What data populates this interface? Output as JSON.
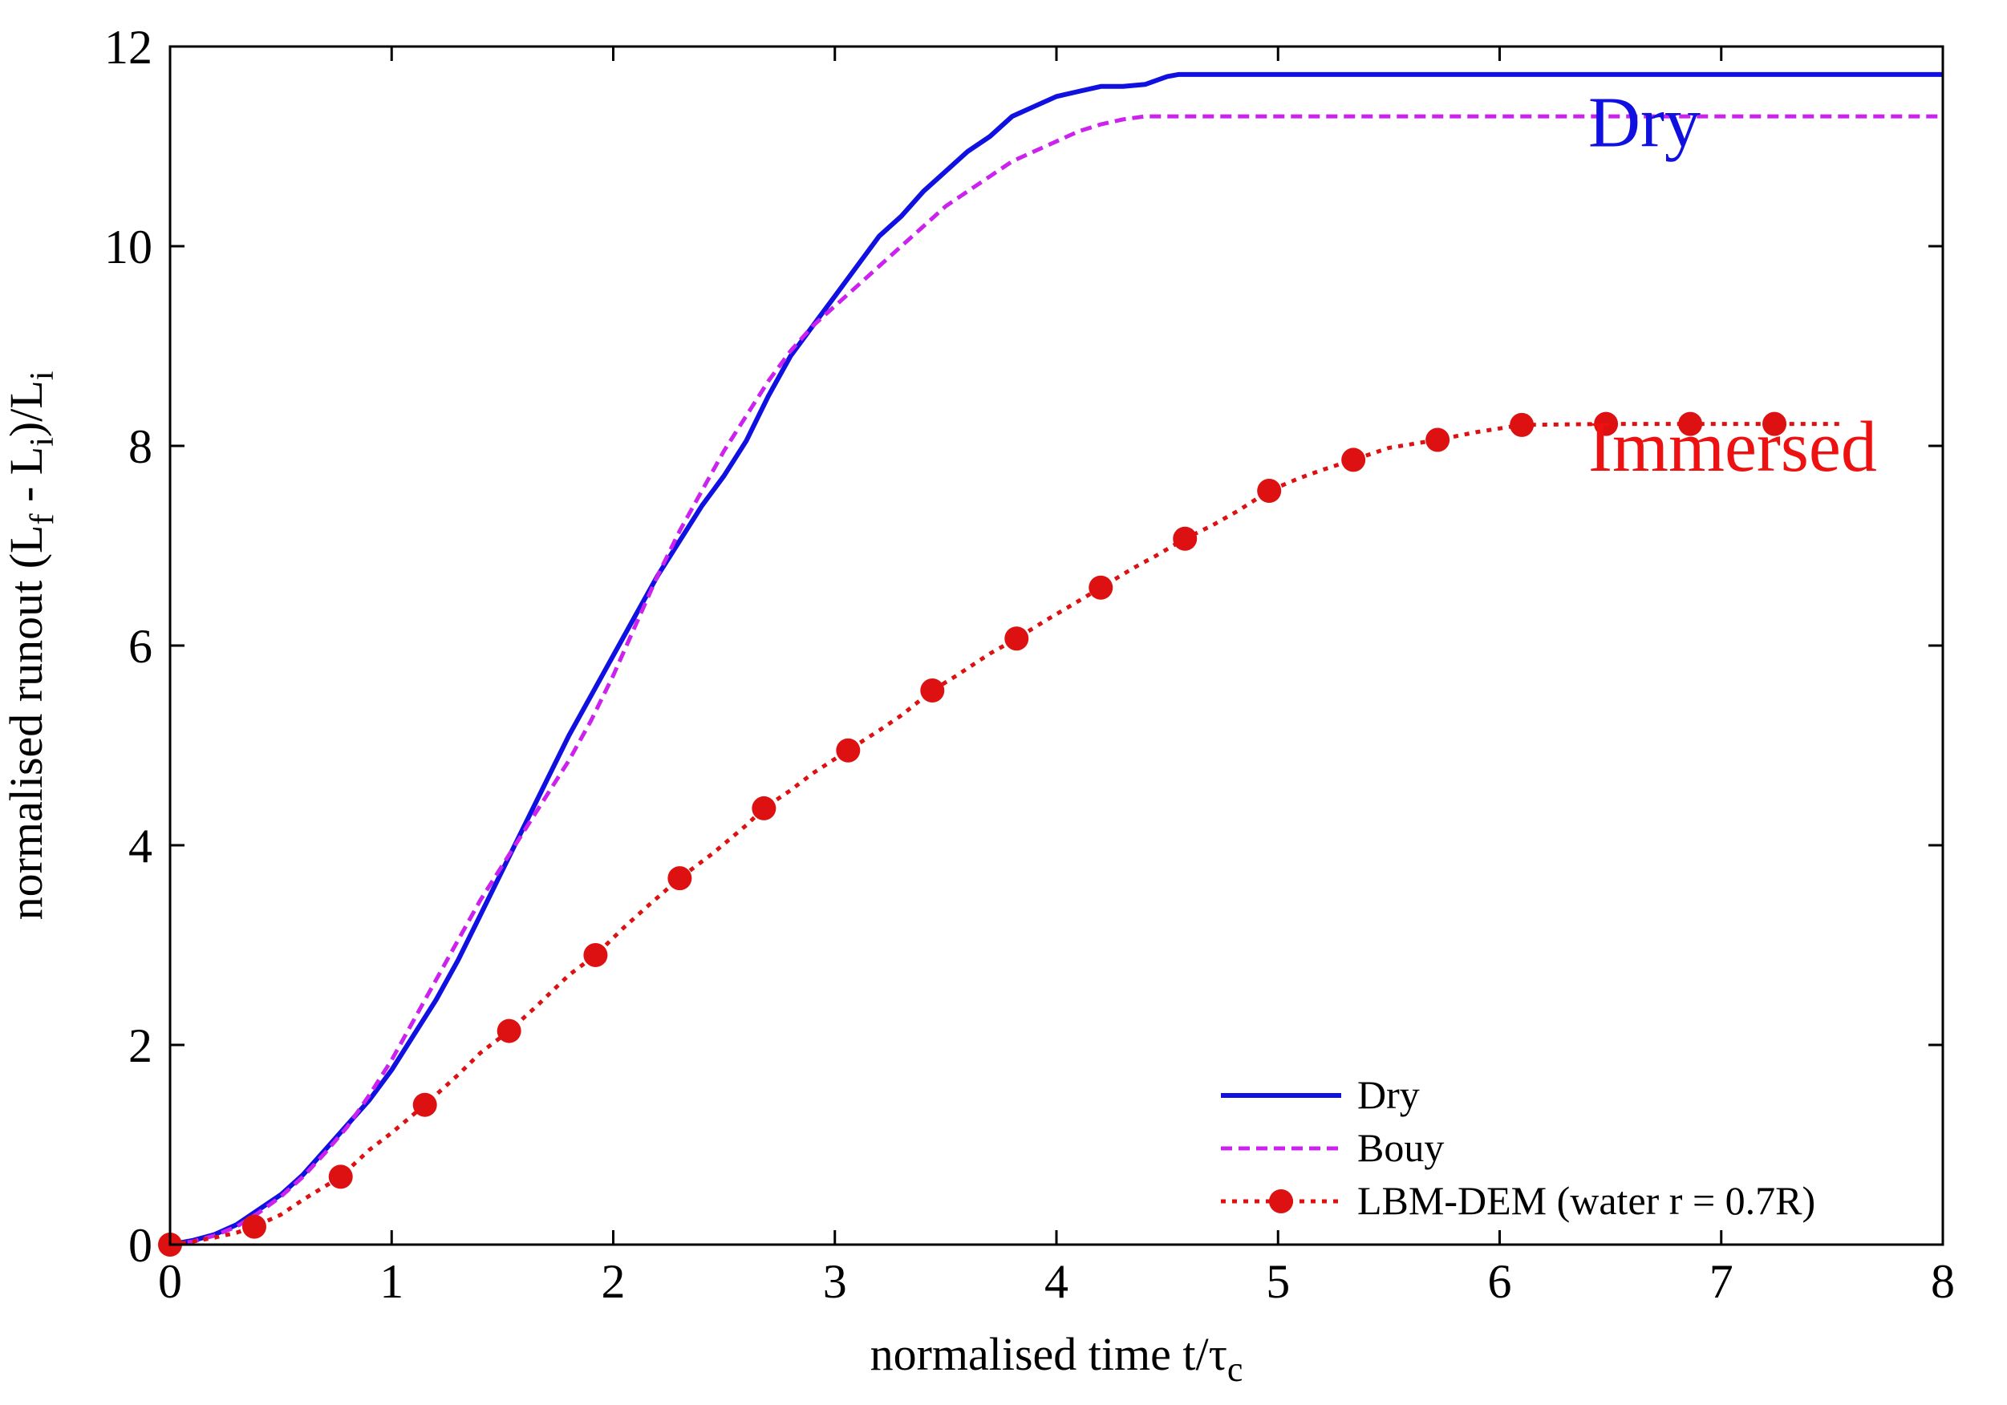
{
  "chart_data": {
    "type": "line",
    "xlabel": "normalised time t/τ",
    "xlabel_sub": "c",
    "ylabel_parts": [
      "normalised runout (L",
      "f",
      " - L",
      "i",
      ")/L",
      "i"
    ],
    "xlim": [
      0,
      8
    ],
    "ylim": [
      0,
      12
    ],
    "xticks": [
      0,
      1,
      2,
      3,
      4,
      5,
      6,
      7,
      8
    ],
    "yticks": [
      0,
      2,
      4,
      6,
      8,
      10,
      12
    ],
    "grid": false,
    "legend_position": "bottom-right",
    "annotations": [
      {
        "text": "Dry",
        "x": 6.4,
        "y": 11.0,
        "color": "#1010e0"
      },
      {
        "text": "Immersed",
        "x": 6.4,
        "y": 7.75,
        "color": "#ee1111"
      }
    ],
    "series": [
      {
        "name": "Dry",
        "color": "#1010e0",
        "style": "solid",
        "x": [
          0,
          0.1,
          0.2,
          0.3,
          0.4,
          0.5,
          0.6,
          0.7,
          0.8,
          0.9,
          1.0,
          1.1,
          1.2,
          1.3,
          1.4,
          1.5,
          1.6,
          1.7,
          1.8,
          1.9,
          2.0,
          2.1,
          2.2,
          2.3,
          2.4,
          2.5,
          2.6,
          2.7,
          2.8,
          2.9,
          3.0,
          3.1,
          3.2,
          3.3,
          3.4,
          3.5,
          3.6,
          3.7,
          3.8,
          3.9,
          4.0,
          4.1,
          4.2,
          4.3,
          4.4,
          4.5,
          4.55,
          4.6,
          4.65,
          5.0,
          6.0,
          7.0,
          8.0
        ],
        "y": [
          0,
          0.04,
          0.1,
          0.2,
          0.35,
          0.5,
          0.7,
          0.95,
          1.2,
          1.45,
          1.75,
          2.1,
          2.45,
          2.85,
          3.3,
          3.75,
          4.2,
          4.65,
          5.1,
          5.5,
          5.9,
          6.3,
          6.7,
          7.05,
          7.4,
          7.7,
          8.05,
          8.5,
          8.9,
          9.2,
          9.5,
          9.8,
          10.1,
          10.3,
          10.55,
          10.75,
          10.95,
          11.1,
          11.3,
          11.4,
          11.5,
          11.55,
          11.6,
          11.6,
          11.62,
          11.7,
          11.72,
          11.72,
          11.72,
          11.72,
          11.72,
          11.72,
          11.72
        ]
      },
      {
        "name": "Bouy",
        "color": "#cc22ee",
        "style": "dashed",
        "x": [
          0,
          0.1,
          0.2,
          0.3,
          0.4,
          0.5,
          0.6,
          0.7,
          0.8,
          0.9,
          1.0,
          1.1,
          1.2,
          1.3,
          1.4,
          1.5,
          1.6,
          1.7,
          1.8,
          1.9,
          2.0,
          2.1,
          2.2,
          2.3,
          2.4,
          2.5,
          2.6,
          2.7,
          2.8,
          2.9,
          3.0,
          3.1,
          3.2,
          3.3,
          3.4,
          3.5,
          3.6,
          3.7,
          3.8,
          3.9,
          4.0,
          4.1,
          4.2,
          4.3,
          4.4,
          4.5,
          5.0,
          6.0,
          7.0,
          8.0
        ],
        "y": [
          0,
          0.03,
          0.09,
          0.18,
          0.32,
          0.48,
          0.68,
          0.92,
          1.18,
          1.5,
          1.85,
          2.25,
          2.65,
          3.05,
          3.45,
          3.8,
          4.15,
          4.5,
          4.85,
          5.25,
          5.7,
          6.2,
          6.7,
          7.15,
          7.55,
          7.95,
          8.3,
          8.65,
          8.95,
          9.2,
          9.4,
          9.6,
          9.8,
          10.0,
          10.2,
          10.4,
          10.55,
          10.7,
          10.85,
          10.95,
          11.05,
          11.15,
          11.22,
          11.27,
          11.3,
          11.3,
          11.3,
          11.3,
          11.3,
          11.3
        ]
      },
      {
        "name": "LBM-DEM (water r = 0.7R)",
        "color": "#dd1111",
        "style": "dotted-markers",
        "line_x": [
          0,
          0.1,
          0.2,
          0.3,
          0.38,
          0.5,
          0.6,
          0.77,
          0.9,
          1.0,
          1.15,
          1.3,
          1.4,
          1.53,
          1.65,
          1.8,
          1.92,
          2.05,
          2.15,
          2.3,
          2.45,
          2.6,
          2.68,
          2.8,
          2.9,
          3.06,
          3.2,
          3.3,
          3.44,
          3.55,
          3.7,
          3.82,
          3.95,
          4.05,
          4.2,
          4.35,
          4.45,
          4.58,
          4.7,
          4.82,
          4.96,
          5.1,
          5.2,
          5.34,
          5.5,
          5.72,
          5.9,
          6.1,
          6.48,
          6.86,
          7.24,
          7.55
        ],
        "line_y": [
          0,
          0.03,
          0.07,
          0.12,
          0.18,
          0.3,
          0.45,
          0.68,
          0.95,
          1.12,
          1.4,
          1.7,
          1.92,
          2.14,
          2.38,
          2.7,
          2.9,
          3.18,
          3.38,
          3.67,
          3.92,
          4.2,
          4.37,
          4.55,
          4.72,
          4.95,
          5.15,
          5.3,
          5.55,
          5.7,
          5.92,
          6.07,
          6.25,
          6.38,
          6.58,
          6.78,
          6.9,
          7.07,
          7.2,
          7.35,
          7.55,
          7.68,
          7.76,
          7.86,
          7.98,
          8.06,
          8.14,
          8.21,
          8.22,
          8.22,
          8.22,
          8.22
        ],
        "marker_x": [
          0,
          0.38,
          0.77,
          1.15,
          1.53,
          1.92,
          2.3,
          2.68,
          3.06,
          3.44,
          3.82,
          4.2,
          4.58,
          4.96,
          5.34,
          5.72,
          6.1,
          6.48,
          6.86,
          7.24
        ],
        "marker_y": [
          0,
          0.18,
          0.68,
          1.4,
          2.14,
          2.9,
          3.67,
          4.37,
          4.95,
          5.55,
          6.07,
          6.58,
          7.07,
          7.55,
          7.86,
          8.06,
          8.21,
          8.22,
          8.22,
          8.22
        ]
      }
    ]
  }
}
